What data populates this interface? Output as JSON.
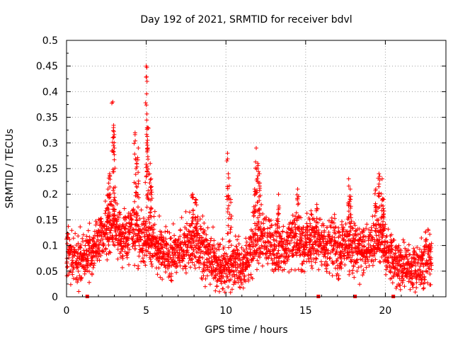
{
  "chart_data": {
    "type": "scatter",
    "title": "Day 192 of 2021, SRMTID for receiver bdvl",
    "xlabel": "GPS time / hours",
    "ylabel": "SRMTID / TECUs",
    "xlim": [
      0,
      23.8
    ],
    "ylim": [
      0,
      0.5
    ],
    "xticks": [
      "0",
      "5",
      "10",
      "15",
      "20"
    ],
    "yticks": [
      "0",
      "0.05",
      "0.1",
      "0.15",
      "0.2",
      "0.25",
      "0.3",
      "0.35",
      "0.4",
      "0.45",
      "0.5"
    ],
    "grid": true,
    "legend": "none",
    "marker": "plus",
    "color": "#ff0000",
    "gap_markers_x": [
      1.3,
      15.8,
      18.1,
      20.5
    ],
    "baseline": [
      [
        0,
        0.1
      ],
      [
        0.5,
        0.07
      ],
      [
        1.0,
        0.07
      ],
      [
        1.5,
        0.09
      ],
      [
        2.0,
        0.11
      ],
      [
        2.5,
        0.13
      ],
      [
        3.0,
        0.14
      ],
      [
        3.5,
        0.11
      ],
      [
        4.0,
        0.13
      ],
      [
        4.5,
        0.12
      ],
      [
        5.0,
        0.11
      ],
      [
        5.5,
        0.1
      ],
      [
        6.0,
        0.09
      ],
      [
        6.5,
        0.08
      ],
      [
        7.0,
        0.09
      ],
      [
        7.5,
        0.1
      ],
      [
        8.0,
        0.11
      ],
      [
        8.5,
        0.09
      ],
      [
        9.0,
        0.08
      ],
      [
        9.5,
        0.06
      ],
      [
        10.0,
        0.05
      ],
      [
        10.5,
        0.06
      ],
      [
        11.0,
        0.06
      ],
      [
        11.5,
        0.09
      ],
      [
        12.0,
        0.12
      ],
      [
        12.5,
        0.11
      ],
      [
        13.0,
        0.1
      ],
      [
        13.5,
        0.09
      ],
      [
        14.0,
        0.11
      ],
      [
        14.5,
        0.11
      ],
      [
        15.0,
        0.1
      ],
      [
        15.5,
        0.11
      ],
      [
        16.0,
        0.1
      ],
      [
        16.5,
        0.1
      ],
      [
        17.0,
        0.09
      ],
      [
        17.5,
        0.1
      ],
      [
        18.0,
        0.09
      ],
      [
        18.5,
        0.09
      ],
      [
        19.0,
        0.11
      ],
      [
        19.5,
        0.12
      ],
      [
        20.0,
        0.1
      ],
      [
        20.5,
        0.07
      ],
      [
        21.0,
        0.06
      ],
      [
        21.5,
        0.06
      ],
      [
        22.0,
        0.05
      ],
      [
        22.5,
        0.07
      ],
      [
        22.9,
        0.08
      ]
    ],
    "spikes": [
      [
        2.9,
        0.38
      ],
      [
        2.95,
        0.33
      ],
      [
        3.0,
        0.29
      ],
      [
        2.7,
        0.24
      ],
      [
        2.6,
        0.21
      ],
      [
        4.3,
        0.32
      ],
      [
        4.5,
        0.29
      ],
      [
        4.4,
        0.26
      ],
      [
        5.0,
        0.45
      ],
      [
        5.05,
        0.42
      ],
      [
        5.1,
        0.33
      ],
      [
        5.1,
        0.29
      ],
      [
        5.25,
        0.26
      ],
      [
        5.3,
        0.23
      ],
      [
        7.9,
        0.2
      ],
      [
        8.1,
        0.19
      ],
      [
        10.1,
        0.28
      ],
      [
        10.15,
        0.24
      ],
      [
        10.3,
        0.19
      ],
      [
        11.9,
        0.29
      ],
      [
        12.0,
        0.26
      ],
      [
        12.1,
        0.24
      ],
      [
        11.8,
        0.21
      ],
      [
        14.5,
        0.21
      ],
      [
        13.3,
        0.2
      ],
      [
        15.7,
        0.18
      ],
      [
        17.7,
        0.23
      ],
      [
        17.8,
        0.21
      ],
      [
        19.6,
        0.24
      ],
      [
        19.8,
        0.23
      ],
      [
        19.4,
        0.21
      ],
      [
        19.9,
        0.19
      ]
    ]
  }
}
